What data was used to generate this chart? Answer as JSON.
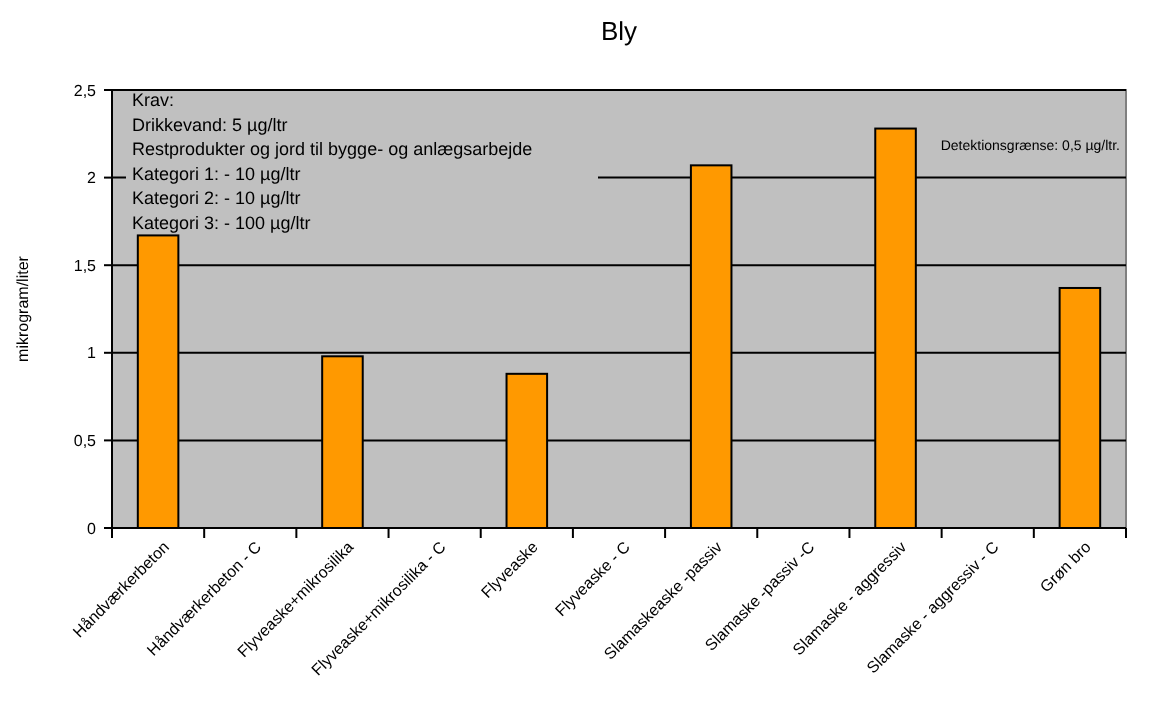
{
  "chart_data": {
    "type": "bar",
    "title": "Bly",
    "ylabel": "mikrogram/liter",
    "categories": [
      "Håndværkerbeton",
      "Håndværkerbeton - C",
      "Flyveaske+mikrosilika",
      "Flyveaske+mikrosilika - C",
      "Flyveaske",
      "Flyveaske - C",
      "Slamaskeaske -passiv",
      "Slamaske -passiv -C",
      "Slamaske - aggressiv",
      "Slamaske - aggressiv - C",
      "Grøn bro"
    ],
    "values": [
      1.67,
      null,
      0.98,
      null,
      0.88,
      null,
      2.07,
      null,
      2.28,
      null,
      1.37
    ],
    "color": "#ff9900",
    "ylim": [
      0,
      2.5
    ],
    "yticks": [
      {
        "value": 0,
        "label": "0"
      },
      {
        "value": 0.5,
        "label": "0,5"
      },
      {
        "value": 1,
        "label": "1"
      },
      {
        "value": 1.5,
        "label": "1,5"
      },
      {
        "value": 2,
        "label": "2"
      },
      {
        "value": 2.5,
        "label": "2,5"
      }
    ],
    "grid": "y",
    "annotations": [
      "Krav:",
      "Drikkevand: 5 µg/ltr",
      "Restprodukter og jord til bygge- og anlægsarbejde",
      "Kategori 1: - 10 µg/ltr",
      "Kategori 2: - 10 µg/ltr",
      "Kategori 3: - 100 µg/ltr",
      "Detektionsgrænse: 0,5 µg/ltr."
    ]
  }
}
